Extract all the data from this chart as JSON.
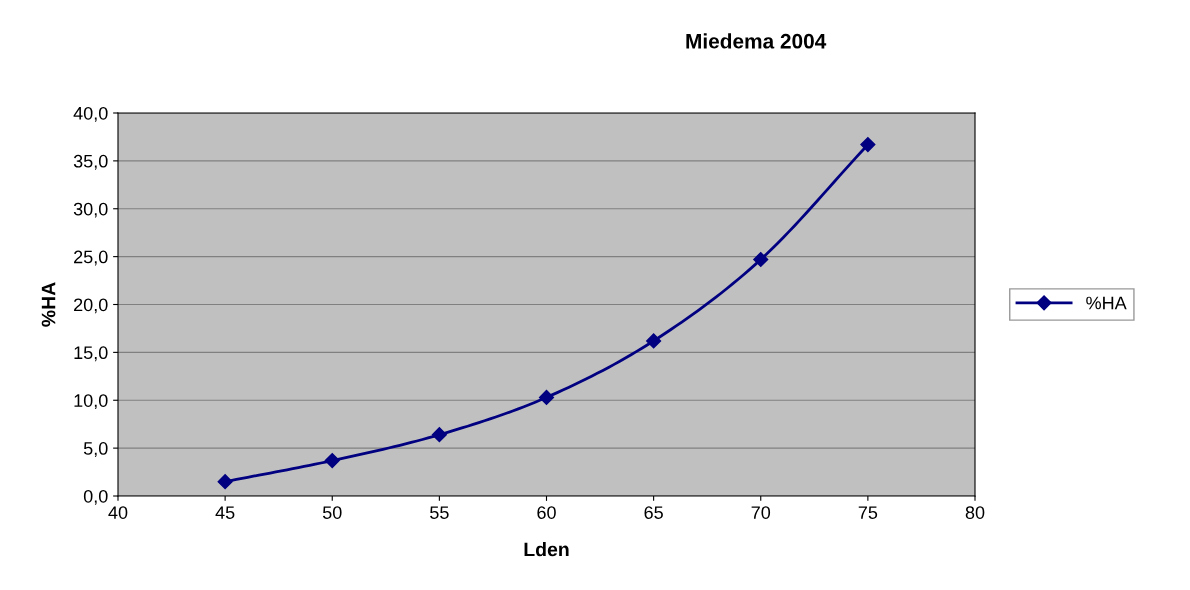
{
  "chart_data": {
    "type": "line",
    "title": "Miedema 2004",
    "xlabel": "Lden",
    "ylabel": "%HA",
    "x": [
      45,
      50,
      55,
      60,
      65,
      70,
      75
    ],
    "series": [
      {
        "name": "%HA",
        "color": "#000080",
        "values": [
          1.5,
          3.7,
          6.4,
          10.3,
          16.2,
          24.7,
          36.7
        ]
      }
    ],
    "xlim": [
      40,
      80
    ],
    "xticks": [
      40,
      45,
      50,
      55,
      60,
      65,
      70,
      75,
      80
    ],
    "ylim": [
      0,
      40
    ],
    "yticks": [
      {
        "value": 0,
        "label": "0,0"
      },
      {
        "value": 5,
        "label": "5,0"
      },
      {
        "value": 10,
        "label": "10,0"
      },
      {
        "value": 15,
        "label": "15,0"
      },
      {
        "value": 20,
        "label": "20,0"
      },
      {
        "value": 25,
        "label": "25,0"
      },
      {
        "value": 30,
        "label": "30,0"
      },
      {
        "value": 35,
        "label": "35,0"
      },
      {
        "value": 40,
        "label": "40,0"
      }
    ],
    "grid": "y",
    "legend": "right",
    "marker": "diamond",
    "line_style": "solid"
  }
}
